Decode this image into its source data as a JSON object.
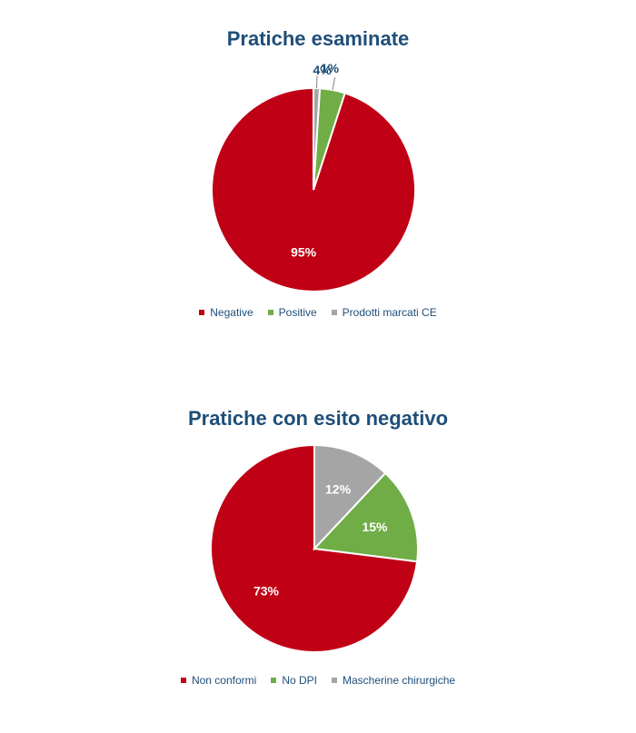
{
  "chart_data": [
    {
      "type": "pie",
      "title": "Pratiche esaminate",
      "categories": [
        "Negative",
        "Positive",
        "Prodotti marcati CE"
      ],
      "values": [
        95,
        4,
        1
      ],
      "labels": [
        "95%",
        "4%",
        "1%"
      ],
      "colors": [
        "#c00014",
        "#70ad47",
        "#a5a5a5"
      ],
      "legend": "bottom"
    },
    {
      "type": "pie",
      "title": "Pratiche con esito negativo",
      "categories": [
        "Non conformi",
        "No DPI",
        "Mascherine chirurgiche"
      ],
      "values": [
        73,
        15,
        12
      ],
      "labels": [
        "73%",
        "15%",
        "12%"
      ],
      "colors": [
        "#c00014",
        "#70ad47",
        "#a5a5a5"
      ],
      "legend": "bottom"
    }
  ]
}
